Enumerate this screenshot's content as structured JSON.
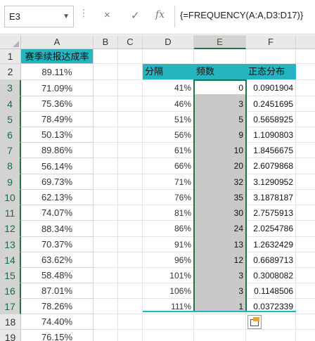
{
  "formula_bar": {
    "name_box": "E3",
    "name_arrow": "▼",
    "dots": "⋮",
    "cancel_icon": "×",
    "enter_icon": "✓",
    "fx_label": "fx",
    "formula": "{=FREQUENCY(A:A,D3:D17)}"
  },
  "columns": [
    "A",
    "B",
    "C",
    "D",
    "E",
    "F"
  ],
  "rows": [
    "1",
    "2",
    "3",
    "4",
    "5",
    "6",
    "7",
    "8",
    "9",
    "10",
    "11",
    "12",
    "13",
    "14",
    "15",
    "16",
    "17",
    "18",
    "19"
  ],
  "column_a": {
    "header": "赛季续报达成率",
    "values": [
      "89.11%",
      "71.09%",
      "75.36%",
      "78.49%",
      "50.13%",
      "89.86%",
      "56.14%",
      "69.73%",
      "62.13%",
      "74.07%",
      "88.34%",
      "70.37%",
      "63.62%",
      "58.48%",
      "87.01%",
      "78.26%",
      "74.40%",
      "76.15%"
    ]
  },
  "freq_table": {
    "headers": [
      "分隔",
      "频数",
      "正态分布"
    ],
    "bins": [
      "41%",
      "46%",
      "51%",
      "56%",
      "61%",
      "66%",
      "71%",
      "76%",
      "81%",
      "86%",
      "91%",
      "96%",
      "101%",
      "106%",
      "111%"
    ],
    "counts": [
      "0",
      "3",
      "5",
      "9",
      "10",
      "20",
      "32",
      "35",
      "30",
      "24",
      "13",
      "12",
      "3",
      "3",
      "1"
    ],
    "normal": [
      "0.0901904",
      "0.2451695",
      "0.5658925",
      "1.1090803",
      "1.8456675",
      "2.6079868",
      "3.1290952",
      "3.1878187",
      "2.7575913",
      "2.0254786",
      "1.2632429",
      "0.6689713",
      "0.3008082",
      "0.1148506",
      "0.0372339"
    ]
  },
  "colors": {
    "accent": "#26b5c0",
    "selection": "#217346",
    "selected_fill": "#c9c9c9"
  }
}
